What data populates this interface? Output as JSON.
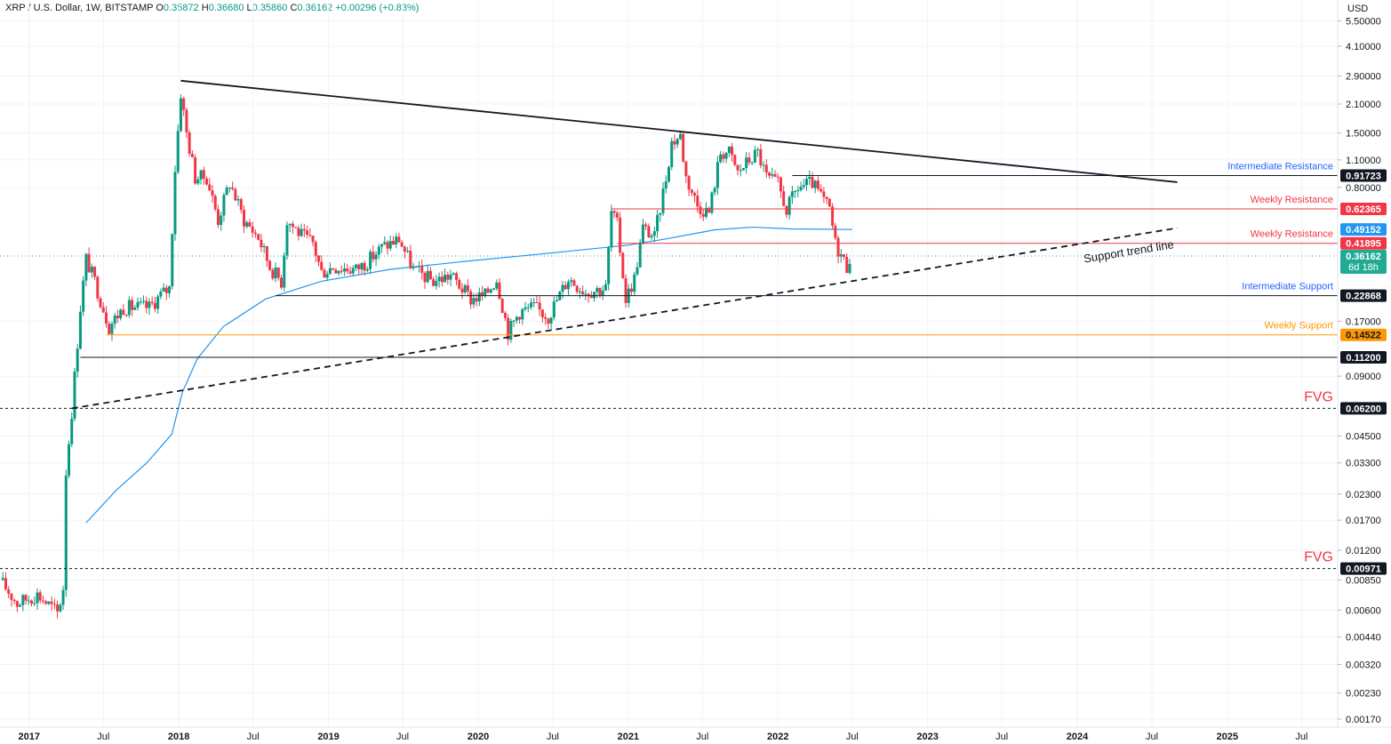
{
  "header": {
    "symbol": "XRP / U.S. Dollar, 1W, BITSTAMP",
    "o_label": "O",
    "o": "0.35872",
    "h_label": "H",
    "h": "0.36680",
    "l_label": "L",
    "l": "0.35860",
    "c_label": "C",
    "c": "0.36162",
    "change": "+0.00296 (+0.83%)"
  },
  "chart_data": {
    "type": "candlestick",
    "title": "XRP / U.S. Dollar, 1W, BITSTAMP",
    "y_scale": "log",
    "currency": "USD",
    "y_ticks": [
      "5.50000",
      "4.10000",
      "2.90000",
      "2.10000",
      "1.50000",
      "1.10000",
      "0.80000",
      "0.17000",
      "0.09000",
      "0.04500",
      "0.03300",
      "0.02300",
      "0.01700",
      "0.01200",
      "0.00850",
      "0.00600",
      "0.00440",
      "0.00320",
      "0.00230",
      "0.00170"
    ],
    "x_ticks": [
      "2017",
      "Jul",
      "2018",
      "Jul",
      "2019",
      "Jul",
      "2020",
      "Jul",
      "2021",
      "Jul",
      "2022",
      "Jul",
      "2023",
      "Jul",
      "2024",
      "Jul",
      "2025",
      "Jul"
    ],
    "x_tick_dates": [
      "2017-01-01",
      "2017-07-01",
      "2018-01-01",
      "2018-07-01",
      "2019-01-01",
      "2019-07-01",
      "2020-01-01",
      "2020-07-01",
      "2021-01-01",
      "2021-07-01",
      "2022-01-01",
      "2022-07-01",
      "2023-01-01",
      "2023-07-01",
      "2024-01-01",
      "2024-07-01",
      "2025-01-01",
      "2025-07-01"
    ],
    "x_range": [
      "2016-10-22",
      "2025-09-27"
    ],
    "y_range": [
      0.00155,
      7.0
    ],
    "colors": {
      "up": "#089981",
      "down": "#f23645",
      "ma": "#2196f3"
    },
    "ohlc_anchors": [
      [
        "2016-10-22",
        0.0085
      ],
      [
        "2016-12-03",
        0.0065
      ],
      [
        "2017-01-21",
        0.0072
      ],
      [
        "2017-02-18",
        0.0064
      ],
      [
        "2017-03-12",
        0.0058
      ],
      [
        "2017-03-25",
        0.0078
      ],
      [
        "2017-04-01",
        0.03
      ],
      [
        "2017-04-15",
        0.06
      ],
      [
        "2017-05-06",
        0.2
      ],
      [
        "2017-05-20",
        0.35
      ],
      [
        "2017-06-10",
        0.27
      ],
      [
        "2017-07-15",
        0.16
      ],
      [
        "2017-08-19",
        0.2
      ],
      [
        "2017-09-16",
        0.2
      ],
      [
        "2017-10-21",
        0.2
      ],
      [
        "2017-11-18",
        0.23
      ],
      [
        "2017-12-09",
        0.25
      ],
      [
        "2017-12-23",
        1.0
      ],
      [
        "2018-01-06",
        2.4
      ],
      [
        "2018-01-20",
        1.5
      ],
      [
        "2018-02-10",
        0.9
      ],
      [
        "2018-03-10",
        0.9
      ],
      [
        "2018-04-07",
        0.55
      ],
      [
        "2018-05-05",
        0.85
      ],
      [
        "2018-06-09",
        0.55
      ],
      [
        "2018-07-14",
        0.45
      ],
      [
        "2018-08-11",
        0.32
      ],
      [
        "2018-09-08",
        0.27
      ],
      [
        "2018-09-22",
        0.55
      ],
      [
        "2018-10-27",
        0.46
      ],
      [
        "2018-11-24",
        0.42
      ],
      [
        "2018-12-15",
        0.3
      ],
      [
        "2019-01-12",
        0.32
      ],
      [
        "2019-03-09",
        0.31
      ],
      [
        "2019-04-06",
        0.34
      ],
      [
        "2019-05-11",
        0.4
      ],
      [
        "2019-06-22",
        0.44
      ],
      [
        "2019-07-27",
        0.31
      ],
      [
        "2019-09-14",
        0.27
      ],
      [
        "2019-10-26",
        0.29
      ],
      [
        "2019-12-14",
        0.22
      ],
      [
        "2020-01-18",
        0.23
      ],
      [
        "2020-02-15",
        0.28
      ],
      [
        "2020-03-14",
        0.15
      ],
      [
        "2020-04-11",
        0.19
      ],
      [
        "2020-05-16",
        0.2
      ],
      [
        "2020-06-20",
        0.18
      ],
      [
        "2020-08-08",
        0.28
      ],
      [
        "2020-09-19",
        0.24
      ],
      [
        "2020-11-07",
        0.25
      ],
      [
        "2020-11-21",
        0.6
      ],
      [
        "2020-12-05",
        0.52
      ],
      [
        "2020-12-26",
        0.22
      ],
      [
        "2021-01-16",
        0.28
      ],
      [
        "2021-02-06",
        0.5
      ],
      [
        "2021-03-06",
        0.45
      ],
      [
        "2021-04-03",
        0.9
      ],
      [
        "2021-04-17",
        1.35
      ],
      [
        "2021-05-08",
        1.45
      ],
      [
        "2021-05-22",
        0.9
      ],
      [
        "2021-06-19",
        0.65
      ],
      [
        "2021-07-17",
        0.6
      ],
      [
        "2021-08-14",
        1.2
      ],
      [
        "2021-09-04",
        1.2
      ],
      [
        "2021-09-25",
        0.95
      ],
      [
        "2021-10-23",
        1.1
      ],
      [
        "2021-11-13",
        1.2
      ],
      [
        "2021-12-04",
        0.9
      ],
      [
        "2022-01-01",
        0.83
      ],
      [
        "2022-01-22",
        0.62
      ],
      [
        "2022-02-19",
        0.8
      ],
      [
        "2022-03-26",
        0.84
      ],
      [
        "2022-04-16",
        0.72
      ],
      [
        "2022-05-07",
        0.62
      ],
      [
        "2022-05-21",
        0.42
      ],
      [
        "2022-06-18",
        0.32
      ],
      [
        "2022-06-25",
        0.36162
      ]
    ],
    "ma_anchors": [
      [
        "2017-05-20",
        0.0165
      ],
      [
        "2017-08-01",
        0.024
      ],
      [
        "2017-10-15",
        0.033
      ],
      [
        "2017-12-15",
        0.046
      ],
      [
        "2018-01-10",
        0.075
      ],
      [
        "2018-02-15",
        0.11
      ],
      [
        "2018-04-20",
        0.16
      ],
      [
        "2018-08-01",
        0.22
      ],
      [
        "2018-12-15",
        0.27
      ],
      [
        "2019-06-01",
        0.31
      ],
      [
        "2019-12-01",
        0.34
      ],
      [
        "2020-06-01",
        0.37
      ],
      [
        "2021-01-01",
        0.41
      ],
      [
        "2021-04-01",
        0.44
      ],
      [
        "2021-08-01",
        0.49
      ],
      [
        "2021-11-01",
        0.505
      ],
      [
        "2022-02-01",
        0.495
      ],
      [
        "2022-07-01",
        0.49152
      ]
    ],
    "horizontal_levels": [
      {
        "name": "Intermediate Resistance",
        "value": 0.91723,
        "color": "#131722",
        "label_color": "#2962ff",
        "start": "2022-02-05",
        "dashed": false
      },
      {
        "name": "Weekly Resistance",
        "value": 0.62365,
        "color": "#f23645",
        "label_color": "#f23645",
        "start": "2020-11-21",
        "dashed": false
      },
      {
        "name": "Weekly Resistance",
        "value": 0.41895,
        "color": "#f23645",
        "label_color": "#f23645",
        "start": "2020-12-05",
        "dashed": false
      },
      {
        "name": "Intermediate Support",
        "value": 0.22868,
        "color": "#131722",
        "label_color": "#2962ff",
        "start": "2018-08-25",
        "dashed": false
      },
      {
        "name": "Weekly Support",
        "value": 0.14522,
        "color": "#ff9800",
        "label_color": "#ff9800",
        "start": "2017-07-08",
        "dashed": false
      },
      {
        "name": "",
        "value": 0.112,
        "color": "#131722",
        "label_color": "#131722",
        "start": "2017-05-06",
        "dashed": false
      },
      {
        "name": "FVG",
        "value": 0.062,
        "color": "#131722",
        "label_color": "#f23645",
        "start": "2016-10-22",
        "dashed": true
      },
      {
        "name": "FVG",
        "value": 0.00971,
        "color": "#131722",
        "label_color": "#f23645",
        "start": "2016-10-22",
        "dashed": true
      }
    ],
    "trend_lines": [
      {
        "name": "",
        "from": [
          "2018-01-06",
          2.75
        ],
        "to": [
          "2024-09-01",
          0.85
        ],
        "dashed": false
      },
      {
        "name": "Support trend line",
        "from": [
          "2017-04-15",
          0.062
        ],
        "to": [
          "2024-09-01",
          0.5
        ],
        "dashed": true
      }
    ],
    "current_price": 0.36162
  },
  "price_tags": [
    {
      "text": "0.91723",
      "value": 0.91723,
      "bg": "#131722",
      "fg": "#ffffff"
    },
    {
      "text": "0.62365",
      "value": 0.62365,
      "bg": "#f23645",
      "fg": "#ffffff"
    },
    {
      "text": "0.49152",
      "value": 0.49152,
      "bg": "#2196f3",
      "fg": "#ffffff"
    },
    {
      "text": "0.41895",
      "value": 0.41895,
      "bg": "#f23645",
      "fg": "#ffffff"
    },
    {
      "text": "0.22868",
      "value": 0.22868,
      "bg": "#131722",
      "fg": "#ffffff"
    },
    {
      "text": "0.14522",
      "value": 0.14522,
      "bg": "#ff9800",
      "fg": "#131722"
    },
    {
      "text": "0.11200",
      "value": 0.112,
      "bg": "#131722",
      "fg": "#ffffff"
    },
    {
      "text": "0.06200",
      "value": 0.062,
      "bg": "#131722",
      "fg": "#ffffff"
    },
    {
      "text": "0.00971",
      "value": 0.00971,
      "bg": "#131722",
      "fg": "#ffffff"
    }
  ],
  "current_tag": {
    "price": "0.36162",
    "countdown": "6d 18h",
    "bg": "#22ab94"
  }
}
